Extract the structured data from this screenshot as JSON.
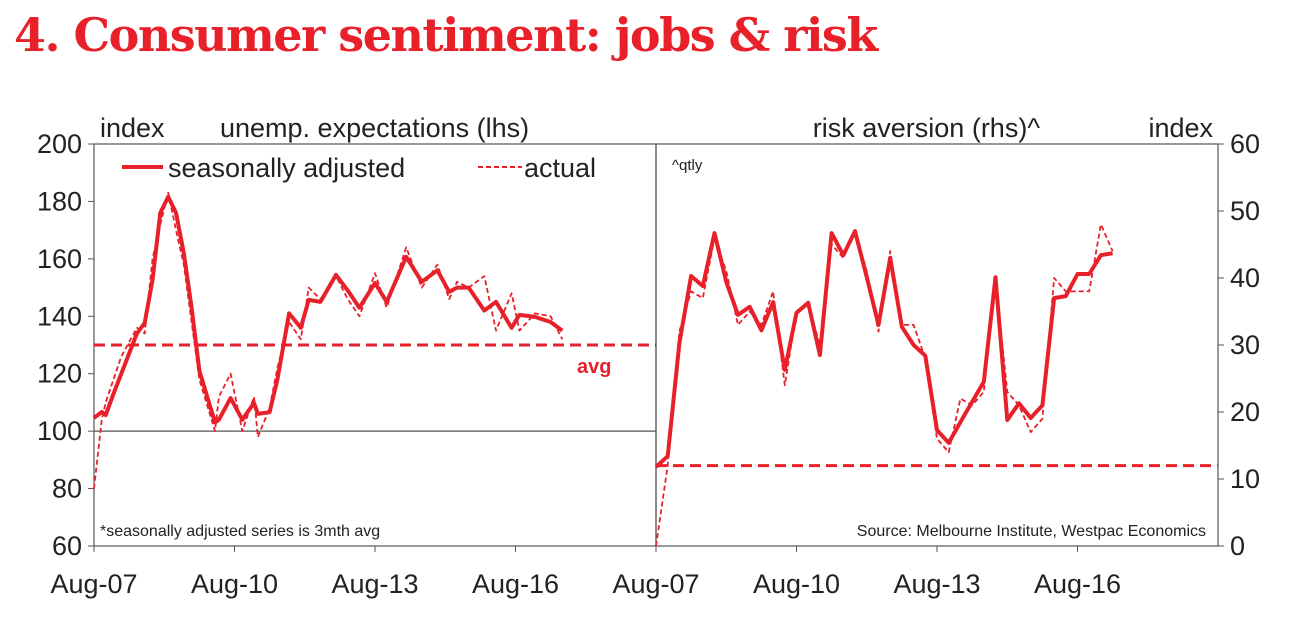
{
  "title": "4. Consumer sentiment: jobs & risk",
  "colors": {
    "series": "#e8202a",
    "axis": "#555555",
    "text": "#222222"
  },
  "chart_data": [
    {
      "type": "line",
      "panel": "left",
      "unit_label": "index",
      "title": "unemp. expectations (lhs)",
      "ylim": [
        60,
        200
      ],
      "yticks": [
        60,
        80,
        100,
        120,
        140,
        160,
        180,
        200
      ],
      "xlim": [
        "Aug-07",
        "Aug-19"
      ],
      "xticks": [
        "Aug-07",
        "Aug-10",
        "Aug-13",
        "Aug-16"
      ],
      "grid": false,
      "legend": "top",
      "reference_line": {
        "value": 100
      },
      "average": {
        "value": 130,
        "label": "avg"
      },
      "footnote": "*seasonally adjusted series is 3mth avg",
      "series": [
        {
          "name": "seasonally adjusted",
          "style": "solid",
          "x": [
            "Aug-07",
            "Oct-07",
            "Nov-07",
            "Jan-08",
            "Mar-08",
            "Jul-08",
            "Sep-08",
            "Nov-08",
            "Jan-09",
            "Mar-09",
            "May-09",
            "Jul-09",
            "Sep-09",
            "Nov-09",
            "Mar-10",
            "Apr-10",
            "Jul-10",
            "Oct-10",
            "Jan-11",
            "Feb-11",
            "May-11",
            "Jul-11",
            "Oct-11",
            "Jan-12",
            "Mar-12",
            "Jun-12",
            "Oct-12",
            "Jan-13",
            "Apr-13",
            "Aug-13",
            "Nov-13",
            "Apr-14",
            "Aug-14",
            "Dec-14",
            "Mar-15",
            "May-15",
            "Aug-15",
            "Dec-15",
            "Mar-16",
            "Jul-16",
            "Sep-16",
            "Jan-17",
            "May-17",
            "Aug-17"
          ],
          "values": [
            104.6,
            106.7,
            105.6,
            113,
            120,
            134,
            137.7,
            152.6,
            176,
            181.6,
            176,
            162,
            143,
            121,
            103,
            104,
            111.5,
            104,
            109.8,
            106,
            106.6,
            118,
            141,
            136,
            145.7,
            145,
            154.4,
            149,
            143,
            151.6,
            145,
            160.7,
            152,
            156,
            148.5,
            150,
            150,
            142,
            145,
            136,
            140.5,
            139.8,
            138,
            135
          ]
        },
        {
          "name": "actual",
          "style": "dashed",
          "x": [
            "Aug-07",
            "Oct-07",
            "Nov-07",
            "Jan-08",
            "Mar-08",
            "Jul-08",
            "Sep-08",
            "Nov-08",
            "Jan-09",
            "Mar-09",
            "May-09",
            "Jul-09",
            "Sep-09",
            "Nov-09",
            "Mar-10",
            "Apr-10",
            "Jul-10",
            "Oct-10",
            "Jan-11",
            "Feb-11",
            "May-11",
            "Jul-11",
            "Oct-11",
            "Jan-12",
            "Mar-12",
            "Jun-12",
            "Oct-12",
            "Jan-13",
            "Apr-13",
            "Aug-13",
            "Nov-13",
            "Apr-14",
            "Aug-14",
            "Dec-14",
            "Mar-15",
            "May-15",
            "Aug-15",
            "Dec-15",
            "Mar-16",
            "Jul-16",
            "Sep-16",
            "Jan-17",
            "May-17",
            "Aug-17"
          ],
          "values": [
            80,
            104,
            110,
            118,
            126,
            136,
            134,
            160,
            172,
            183,
            170,
            158,
            138,
            118,
            100,
            112,
            120,
            100,
            112,
            98,
            108,
            122,
            138,
            132,
            150,
            146,
            154,
            146,
            140,
            155,
            143,
            164,
            150,
            158,
            146,
            152,
            150,
            154,
            135,
            148,
            135,
            141,
            140,
            132
          ]
        }
      ]
    },
    {
      "type": "line",
      "panel": "right",
      "unit_label": "index",
      "title": "risk aversion (rhs)^",
      "note": "^qtly",
      "ylim": [
        0,
        60
      ],
      "yticks": [
        0,
        10,
        20,
        30,
        40,
        50,
        60
      ],
      "xlim": [
        "Aug-07",
        "Aug-19"
      ],
      "xticks": [
        "Aug-07",
        "Aug-10",
        "Aug-13",
        "Aug-16"
      ],
      "grid": false,
      "average": {
        "value": 12
      },
      "source": "Source: Melbourne Institute, Westpac Economics",
      "x_start": "Aug-07",
      "x_step_months": 3,
      "series": [
        {
          "name": "seasonally adjusted",
          "style": "solid",
          "values": [
            11.8,
            13.4,
            30.3,
            40.3,
            38.8,
            46.7,
            39.4,
            34.5,
            35.7,
            32.2,
            36.4,
            26.3,
            34.8,
            36.3,
            28.5,
            46.7,
            43.4,
            47.0,
            40.1,
            33,
            43,
            32.7,
            30,
            28.4,
            17.3,
            15.4,
            18.5,
            21.5,
            24.5,
            40.1,
            18.8,
            21.3,
            19.1,
            21,
            37,
            37.3,
            40.6,
            40.6,
            43.4,
            43.7
          ]
        },
        {
          "name": "actual",
          "style": "dashed",
          "values": [
            0,
            12,
            32,
            38,
            37,
            46,
            41,
            33,
            35,
            33,
            38,
            24,
            35,
            36,
            30,
            45,
            43,
            47,
            41,
            32,
            44,
            33,
            33,
            28,
            16,
            14,
            22,
            21,
            23,
            40,
            23,
            21,
            17,
            19,
            40,
            38,
            38,
            38,
            48,
            44
          ]
        }
      ]
    }
  ]
}
